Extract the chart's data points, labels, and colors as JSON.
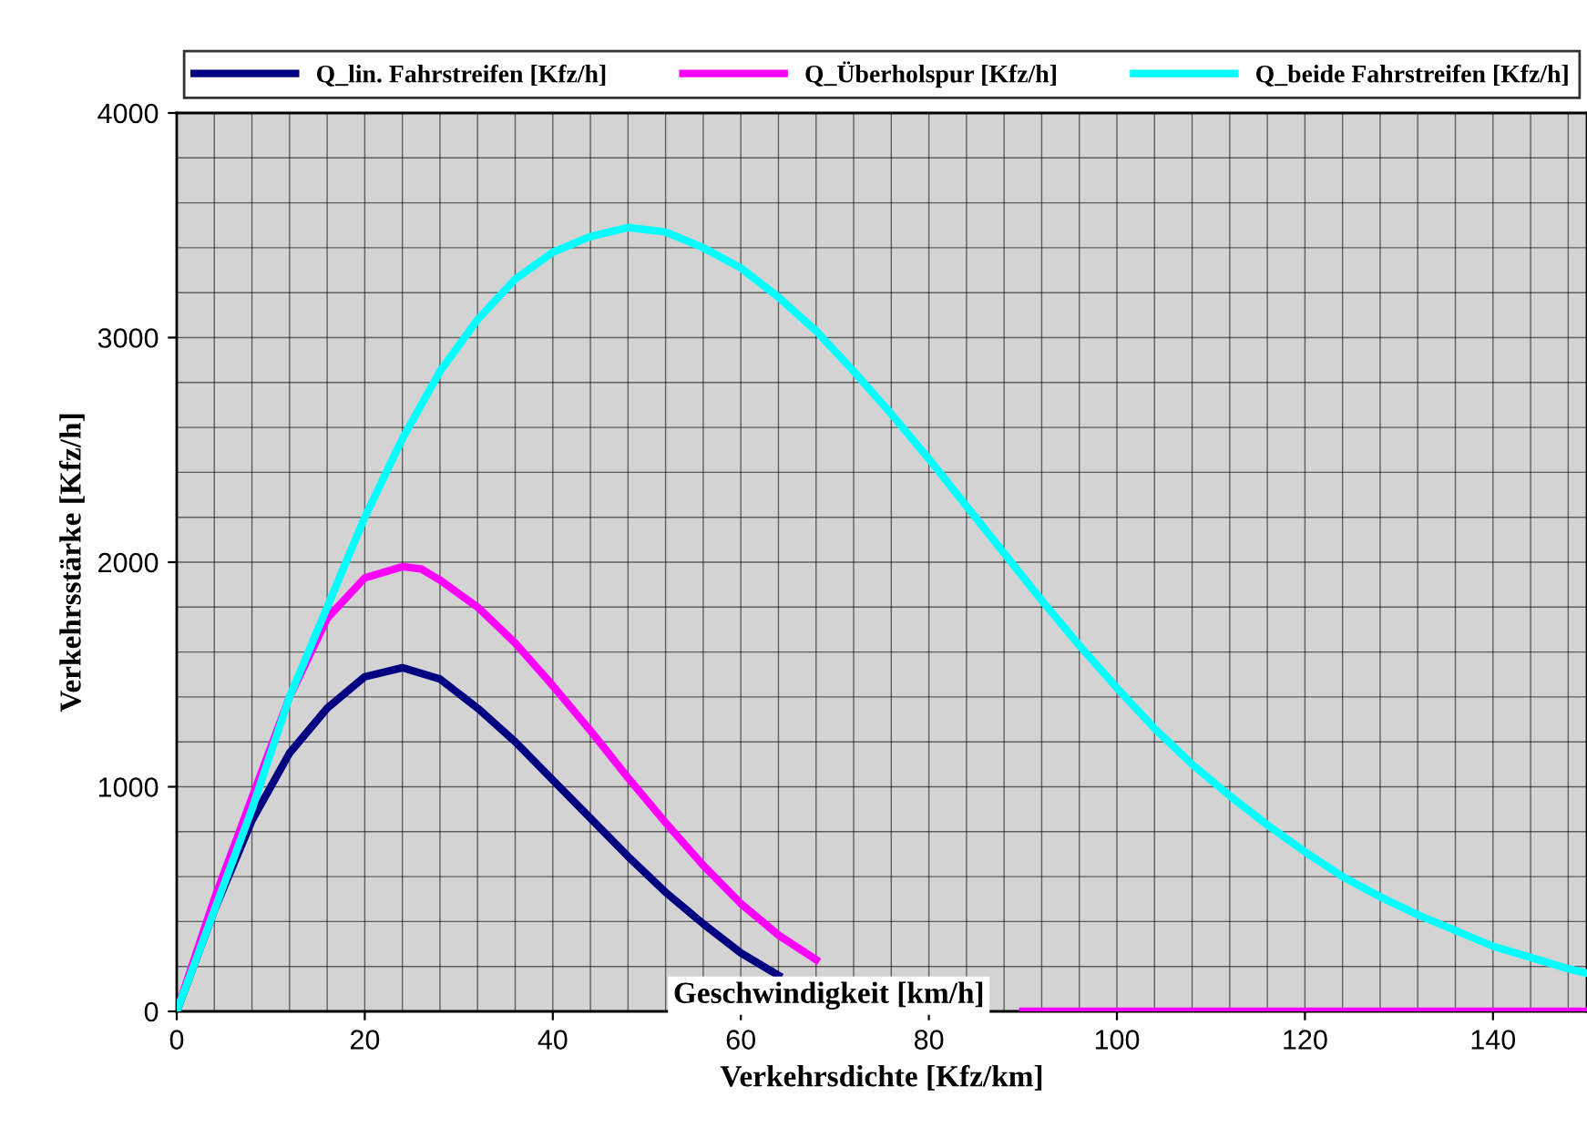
{
  "chart_data": {
    "type": "line",
    "xlabel": "Verkehrsdichte [Kfz/km]",
    "ylabel": "Verkehrsstärke [Kfz/h]",
    "annotations": [
      "Geschwindigkeit [km/h]"
    ],
    "xlim": [
      0,
      150
    ],
    "ylim": [
      0,
      4000
    ],
    "xticks": [
      0,
      {
        "value": 4,
        "label": null
      },
      {
        "value": 8,
        "label": null
      },
      {
        "value": 12,
        "label": null
      },
      {
        "value": 16,
        "label": null
      },
      20,
      {
        "value": 24,
        "label": null
      },
      {
        "value": 28,
        "label": null
      },
      {
        "value": 32,
        "label": null
      },
      {
        "value": 36,
        "label": null
      },
      40,
      {
        "value": 44,
        "label": null
      },
      {
        "value": 48,
        "label": null
      },
      {
        "value": 52,
        "label": null
      },
      {
        "value": 56,
        "label": null
      },
      60,
      {
        "value": 64,
        "label": null
      },
      {
        "value": 68,
        "label": null
      },
      {
        "value": 72,
        "label": null
      },
      {
        "value": 76,
        "label": null
      },
      80,
      {
        "value": 84,
        "label": null
      },
      {
        "value": 88,
        "label": null
      },
      {
        "value": 92,
        "label": null
      },
      {
        "value": 96,
        "label": null
      },
      100,
      {
        "value": 104,
        "label": null
      },
      {
        "value": 108,
        "label": null
      },
      {
        "value": 112,
        "label": null
      },
      {
        "value": 116,
        "label": null
      },
      120,
      {
        "value": 124,
        "label": null
      },
      {
        "value": 128,
        "label": null
      },
      {
        "value": 132,
        "label": null
      },
      {
        "value": 136,
        "label": null
      },
      140,
      {
        "value": 144,
        "label": null
      },
      {
        "value": 148,
        "label": null
      }
    ],
    "yticks": [
      0,
      {
        "value": 200,
        "label": null
      },
      {
        "value": 400,
        "label": null
      },
      {
        "value": 600,
        "label": null
      },
      {
        "value": 800,
        "label": null
      },
      1000,
      {
        "value": 1200,
        "label": null
      },
      {
        "value": 1400,
        "label": null
      },
      {
        "value": 1600,
        "label": null
      },
      {
        "value": 1800,
        "label": null
      },
      2000,
      {
        "value": 2200,
        "label": null
      },
      {
        "value": 2400,
        "label": null
      },
      {
        "value": 2600,
        "label": null
      },
      {
        "value": 2800,
        "label": null
      },
      3000,
      {
        "value": 3200,
        "label": null
      },
      {
        "value": 3400,
        "label": null
      },
      {
        "value": 3600,
        "label": null
      },
      {
        "value": 3800,
        "label": null
      },
      4000
    ],
    "grid": true,
    "legend": "top",
    "marker": "none",
    "line_style": "solid",
    "series": [
      {
        "name": "Q_lin. Fahrstreifen [Kfz/h]",
        "color": "#000080",
        "x": [
          0,
          4,
          8,
          12,
          16,
          20,
          24,
          28,
          32,
          36,
          40,
          44,
          48,
          52,
          56,
          60,
          64
        ],
        "values": [
          0,
          450,
          850,
          1150,
          1350,
          1490,
          1530,
          1480,
          1350,
          1200,
          1030,
          860,
          690,
          530,
          390,
          260,
          160
        ]
      },
      {
        "name": "Q_Überholspur [Kfz/h]",
        "color": "#ff00ff",
        "x": [
          0,
          4,
          8,
          12,
          16,
          20,
          24,
          26,
          28,
          32,
          36,
          40,
          44,
          48,
          52,
          56,
          60,
          64,
          68,
          72,
          76,
          80,
          90,
          100,
          150
        ],
        "values": [
          0,
          500,
          950,
          1400,
          1750,
          1930,
          1980,
          1970,
          1920,
          1800,
          1640,
          1450,
          1250,
          1040,
          840,
          650,
          480,
          340,
          230,
          null,
          null,
          null,
          0,
          0,
          0
        ]
      },
      {
        "name": "Q_beide Fahrstreifen [Kfz/h]",
        "color": "#00ffff",
        "x": [
          0,
          4,
          8,
          12,
          16,
          20,
          24,
          28,
          32,
          36,
          40,
          44,
          48,
          52,
          56,
          60,
          64,
          68,
          72,
          76,
          80,
          84,
          88,
          92,
          96,
          100,
          104,
          108,
          112,
          116,
          120,
          124,
          128,
          132,
          136,
          140,
          144,
          148,
          150
        ],
        "values": [
          0,
          450,
          900,
          1400,
          1800,
          2200,
          2550,
          2850,
          3080,
          3260,
          3380,
          3450,
          3490,
          3470,
          3400,
          3310,
          3180,
          3030,
          2850,
          2660,
          2460,
          2250,
          2040,
          1830,
          1630,
          1440,
          1260,
          1100,
          960,
          830,
          710,
          600,
          510,
          430,
          360,
          290,
          240,
          190,
          170
        ]
      }
    ]
  }
}
